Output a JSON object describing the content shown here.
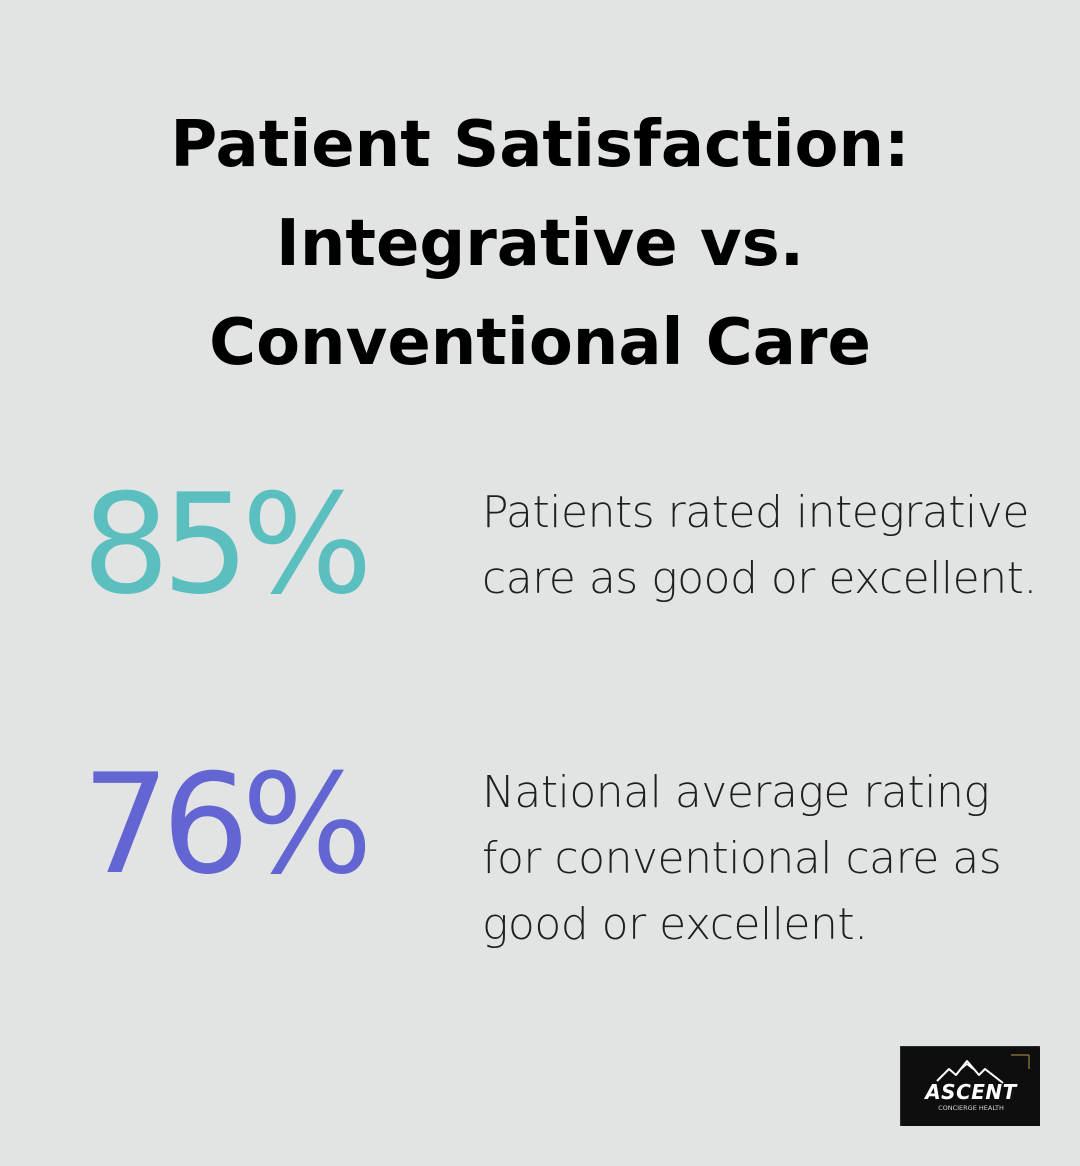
{
  "title": {
    "line1": "Patient Satisfaction:",
    "line2": "Integrative vs.",
    "line3": "Conventional Care"
  },
  "stats": [
    {
      "value": "85%",
      "color": "#5bbfc0",
      "description": "Patients rated integrative care as good or excellent."
    },
    {
      "value": "76%",
      "color": "#6366d2",
      "description": "National average rating for conventional care as good or excellent."
    }
  ],
  "logo": {
    "name": "ASCENT",
    "tagline": "CONCIERGE HEALTH",
    "icon": "mountain-icon"
  }
}
